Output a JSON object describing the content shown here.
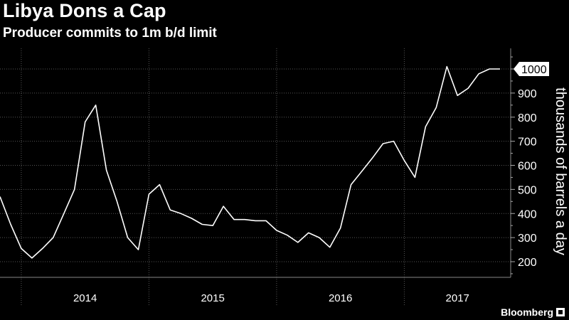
{
  "header": {
    "title": "Libya Dons a Cap",
    "subtitle": "Producer commits to 1m b/d limit"
  },
  "brand": {
    "name": "Bloomberg"
  },
  "colors": {
    "background": "#000000",
    "line": "#ffffff",
    "grid": "#555555",
    "text": "#ffffff"
  },
  "chart_data": {
    "type": "line",
    "title": "Libya Dons a Cap",
    "subtitle": "Producer commits to 1m b/d limit",
    "ylabel": "thousands of barrels a day",
    "xlabel": "",
    "ylim": [
      150,
      1100
    ],
    "xlim": [
      "2013-11",
      "2017-11"
    ],
    "yticks": [
      200,
      300,
      400,
      500,
      600,
      700,
      800,
      900,
      1000
    ],
    "xyears": [
      "2014",
      "2015",
      "2016",
      "2017"
    ],
    "year_boundaries": [
      "2014-01",
      "2015-01",
      "2016-01",
      "2017-01"
    ],
    "grid": true,
    "last_value_label": "1000",
    "series": [
      {
        "name": "",
        "x": [
          "2013-11",
          "2013-12",
          "2014-01",
          "2014-02",
          "2014-03",
          "2014-04",
          "2014-05",
          "2014-06",
          "2014-07",
          "2014-08",
          "2014-09",
          "2014-10",
          "2014-11",
          "2014-12",
          "2015-01",
          "2015-02",
          "2015-03",
          "2015-04",
          "2015-05",
          "2015-06",
          "2015-07",
          "2015-08",
          "2015-09",
          "2015-10",
          "2015-11",
          "2015-12",
          "2016-01",
          "2016-02",
          "2016-03",
          "2016-04",
          "2016-05",
          "2016-06",
          "2016-07",
          "2016-08",
          "2016-09",
          "2016-10",
          "2016-11",
          "2016-12",
          "2017-01",
          "2017-02",
          "2017-03",
          "2017-04",
          "2017-05",
          "2017-06",
          "2017-07",
          "2017-08",
          "2017-09",
          "2017-10"
        ],
        "values": [
          470,
          355,
          255,
          215,
          255,
          300,
          400,
          500,
          780,
          850,
          580,
          450,
          300,
          250,
          480,
          520,
          415,
          400,
          380,
          355,
          350,
          430,
          375,
          375,
          370,
          370,
          330,
          310,
          280,
          320,
          300,
          260,
          340,
          520,
          575,
          630,
          690,
          700,
          620,
          550,
          760,
          840,
          1010,
          890,
          920,
          980,
          1000,
          1000
        ]
      }
    ]
  }
}
